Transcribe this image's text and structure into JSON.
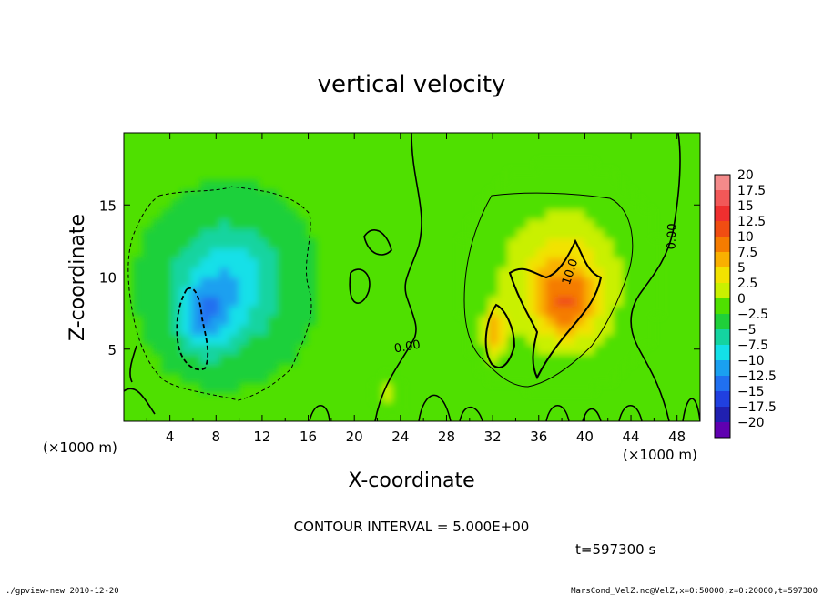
{
  "chart_data": {
    "type": "heatmap",
    "title": "vertical velocity",
    "xlabel": "X-coordinate",
    "ylabel": "Z-coordinate",
    "x_unit": "(×1000 m)",
    "z_unit": "(×1000 m)",
    "xlim": [
      0,
      50
    ],
    "zlim": [
      0,
      20
    ],
    "x_ticks": [
      "4",
      "8",
      "12",
      "16",
      "20",
      "24",
      "28",
      "32",
      "36",
      "40",
      "44",
      "48"
    ],
    "z_ticks": [
      "5",
      "10",
      "15"
    ],
    "colorbar_levels": [
      "20",
      "17.5",
      "15",
      "12.5",
      "10",
      "7.5",
      "5",
      "2.5",
      "0",
      "-2.5",
      "-5",
      "-7.5",
      "-10",
      "-12.5",
      "-15",
      "-17.5",
      "-20"
    ],
    "colorbar_colors": [
      "#f48a8a",
      "#f25858",
      "#ef2f2f",
      "#f04d12",
      "#f57c00",
      "#f9b000",
      "#f2e200",
      "#c9f000",
      "#4fe000",
      "#1fd03a",
      "#14d4a0",
      "#13e0e8",
      "#1aa0f0",
      "#2070f0",
      "#2040e0",
      "#2020b0",
      "#6000b0"
    ],
    "contour_labels": [
      "0.00",
      "0.00",
      "10.0"
    ],
    "contour_interval": "CONTOUR INTERVAL = 5.000E+00",
    "time": "t=597300 s",
    "features": [
      {
        "kind": "downdraft",
        "x": 9,
        "z": 9.5,
        "sx": 4.5,
        "sz": 4.0,
        "w": -7.5
      },
      {
        "kind": "downdraft",
        "x": 7,
        "z": 7,
        "sx": 2.2,
        "sz": 2.3,
        "w": -6
      },
      {
        "kind": "updraft",
        "x": 38,
        "z": 10,
        "sx": 5,
        "sz": 4.5,
        "w": 7
      },
      {
        "kind": "updraft",
        "x": 38.5,
        "z": 8,
        "sx": 2.6,
        "sz": 2.5,
        "w": 7
      },
      {
        "kind": "updraft",
        "x": 32.2,
        "z": 6.2,
        "sx": 1.0,
        "sz": 1.6,
        "w": 9
      },
      {
        "kind": "updraft",
        "x": 23,
        "z": 1.8,
        "sx": 0.6,
        "sz": 0.8,
        "w": 5
      }
    ]
  },
  "footer": {
    "left": "./gpview-new  2010-12-20",
    "right": "MarsCond_VelZ.nc@VelZ,x=0:50000,z=0:20000,t=597300"
  }
}
